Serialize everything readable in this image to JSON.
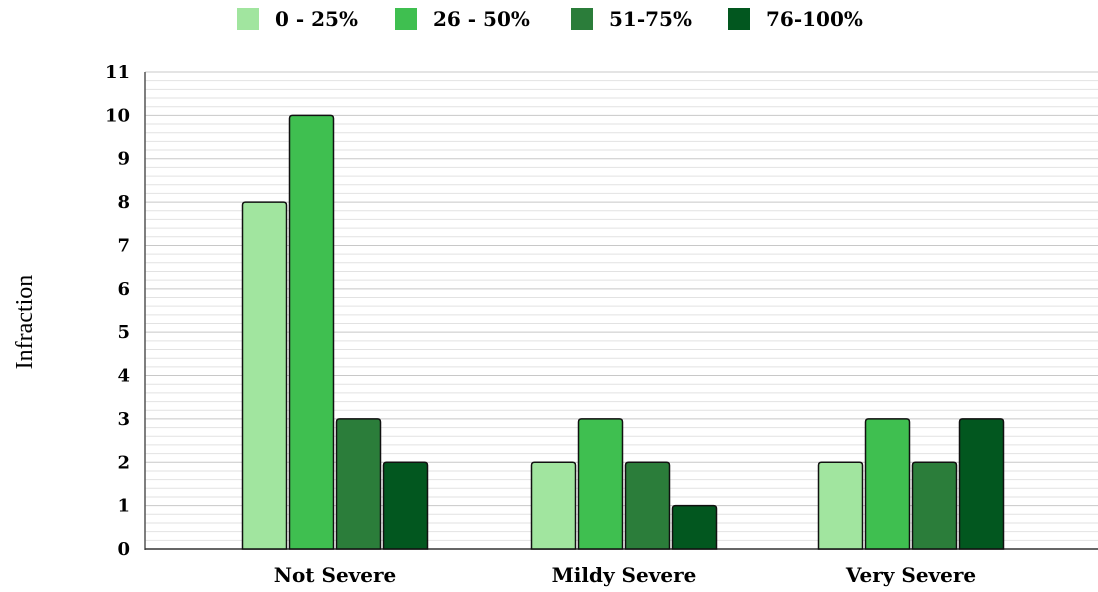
{
  "chart_data": {
    "type": "bar",
    "categories": [
      "Not Severe",
      "Mildy Severe",
      "Very Severe"
    ],
    "series": [
      {
        "name": "0 - 25%",
        "color": "#a1e59f",
        "values": [
          8,
          2,
          2
        ]
      },
      {
        "name": "26 - 50%",
        "color": "#3fbf50",
        "values": [
          10,
          3,
          3
        ]
      },
      {
        "name": "51-75%",
        "color": "#2b7d3a",
        "values": [
          3,
          2,
          2
        ]
      },
      {
        "name": "76-100%",
        "color": "#02571f",
        "values": [
          2,
          1,
          3
        ]
      }
    ],
    "xlabel": "",
    "ylabel": "Infraction",
    "ylim": [
      0,
      11
    ],
    "yticks": [
      0,
      1,
      2,
      3,
      4,
      5,
      6,
      7,
      8,
      9,
      10,
      11
    ],
    "grid": true,
    "legend": "top"
  }
}
